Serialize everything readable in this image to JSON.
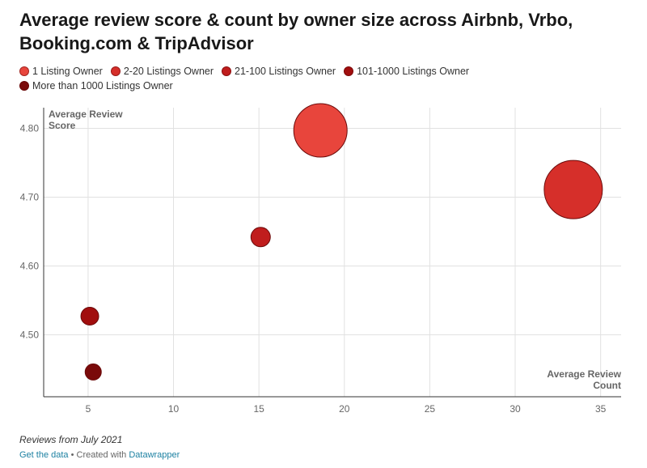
{
  "title": "Average review score & count by owner size across Airbnb, Vrbo, Booking.com & TripAdvisor",
  "notes": "Reviews from July 2021",
  "footer": {
    "get_data": "Get the data",
    "separator": " • Created with ",
    "created_with": "Datawrapper"
  },
  "chart_data": {
    "type": "scatter",
    "xlabel": "Average Review Count",
    "ylabel": "Average Review Score",
    "xlim": [
      2.4,
      36.2
    ],
    "ylim": [
      4.41,
      4.83
    ],
    "x_ticks": [
      5,
      10,
      15,
      20,
      25,
      30,
      35
    ],
    "y_ticks": [
      4.5,
      4.6,
      4.7,
      4.8
    ],
    "y_tick_labels": [
      "4.50",
      "4.60",
      "4.70",
      "4.80"
    ],
    "grid": true,
    "legend_position": "top",
    "bubble_size_note": "relative bubble size shown as size value",
    "series": [
      {
        "name": "1 Listing Owner",
        "x": 18.6,
        "y": 4.797,
        "size": 33,
        "color": "#e8453c"
      },
      {
        "name": "2-20 Listings Owner",
        "x": 33.4,
        "y": 4.711,
        "size": 36,
        "color": "#d62f2a"
      },
      {
        "name": "21-100 Listings Owner",
        "x": 15.1,
        "y": 4.642,
        "size": 12,
        "color": "#c01d1d"
      },
      {
        "name": "101-1000 Listings Owner",
        "x": 5.1,
        "y": 4.527,
        "size": 11,
        "color": "#a10e0e"
      },
      {
        "name": "More than 1000 Listings Owner",
        "x": 5.3,
        "y": 4.446,
        "size": 10,
        "color": "#7a0a0a"
      }
    ]
  }
}
